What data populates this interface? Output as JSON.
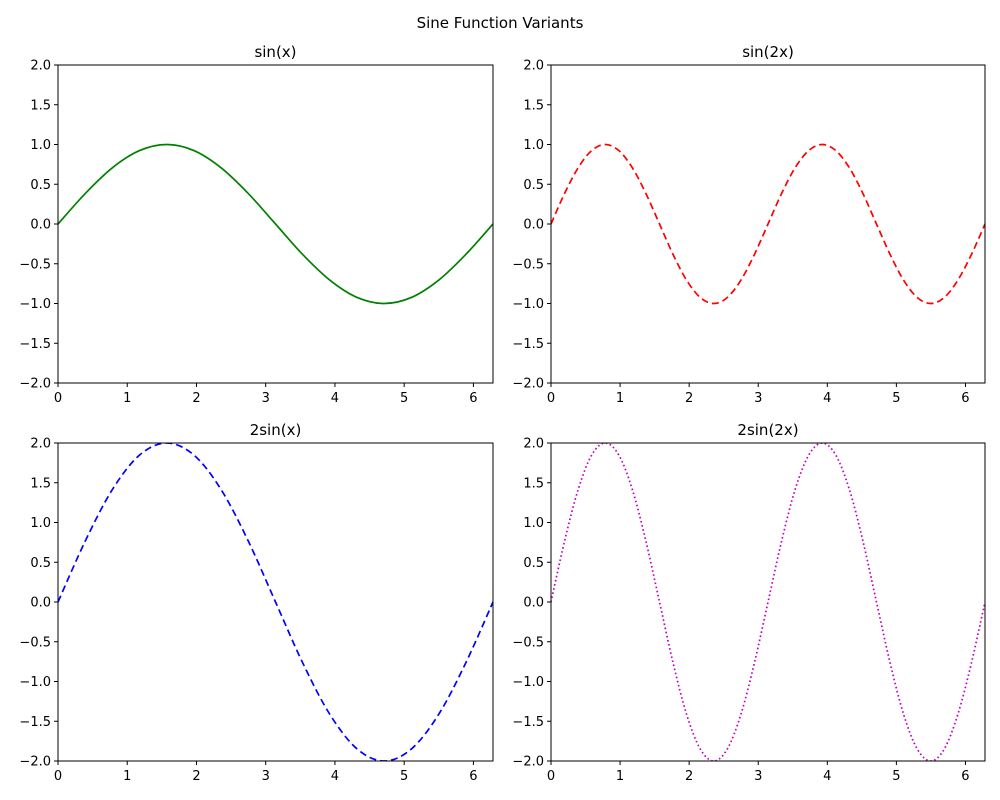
{
  "figure": {
    "title": "Sine Function Variants"
  },
  "chart_data": [
    {
      "type": "line",
      "title": "sin(x)",
      "xlabel": "",
      "ylabel": "",
      "xlim": [
        0,
        6.283
      ],
      "ylim": [
        -2.0,
        2.0
      ],
      "xticks": [
        0,
        1,
        2,
        3,
        4,
        5,
        6
      ],
      "xtick_labels": [
        "0",
        "1",
        "2",
        "3",
        "4",
        "5",
        "6"
      ],
      "yticks": [
        -2.0,
        -1.5,
        -1.0,
        -0.5,
        0.0,
        0.5,
        1.0,
        1.5,
        2.0
      ],
      "ytick_labels": [
        "−2.0",
        "−1.5",
        "−1.0",
        "−0.5",
        "0.0",
        "0.5",
        "1.0",
        "1.5",
        "2.0"
      ],
      "grid": false,
      "series": [
        {
          "color": "#008000",
          "linestyle": "solid",
          "x": [
            0,
            0.393,
            0.785,
            1.178,
            1.571,
            1.963,
            2.356,
            2.749,
            3.142,
            3.534,
            3.927,
            4.32,
            4.712,
            5.105,
            5.498,
            5.89,
            6.283
          ],
          "y": [
            0,
            0.383,
            0.707,
            0.924,
            1.0,
            0.924,
            0.707,
            0.383,
            0,
            -0.383,
            -0.707,
            -0.924,
            -1.0,
            -0.924,
            -0.707,
            -0.383,
            0
          ]
        }
      ]
    },
    {
      "type": "line",
      "title": "sin(2x)",
      "xlabel": "",
      "ylabel": "",
      "xlim": [
        0,
        6.283
      ],
      "ylim": [
        -2.0,
        2.0
      ],
      "xticks": [
        0,
        1,
        2,
        3,
        4,
        5,
        6
      ],
      "xtick_labels": [
        "0",
        "1",
        "2",
        "3",
        "4",
        "5",
        "6"
      ],
      "yticks": [
        -2.0,
        -1.5,
        -1.0,
        -0.5,
        0.0,
        0.5,
        1.0,
        1.5,
        2.0
      ],
      "ytick_labels": [
        "−2.0",
        "−1.5",
        "−1.0",
        "−0.5",
        "0.0",
        "0.5",
        "1.0",
        "1.5",
        "2.0"
      ],
      "grid": false,
      "series": [
        {
          "color": "#ff0000",
          "linestyle": "dashed",
          "x": [
            0,
            0.196,
            0.393,
            0.589,
            0.785,
            0.982,
            1.178,
            1.374,
            1.571,
            1.767,
            1.963,
            2.16,
            2.356,
            2.553,
            2.749,
            2.945,
            3.142,
            3.338,
            3.534,
            3.731,
            3.927,
            4.123,
            4.32,
            4.516,
            4.712,
            4.909,
            5.105,
            5.301,
            5.498,
            5.694,
            5.89,
            6.087,
            6.283
          ],
          "y": [
            0,
            0.383,
            0.707,
            0.924,
            1.0,
            0.924,
            0.707,
            0.383,
            0,
            -0.383,
            -0.707,
            -0.924,
            -1.0,
            -0.924,
            -0.707,
            -0.383,
            0,
            0.383,
            0.707,
            0.924,
            1.0,
            0.924,
            0.707,
            0.383,
            0,
            -0.383,
            -0.707,
            -0.924,
            -1.0,
            -0.924,
            -0.707,
            -0.383,
            0
          ]
        }
      ]
    },
    {
      "type": "line",
      "title": "2sin(x)",
      "xlabel": "",
      "ylabel": "",
      "xlim": [
        0,
        6.283
      ],
      "ylim": [
        -2.0,
        2.0
      ],
      "xticks": [
        0,
        1,
        2,
        3,
        4,
        5,
        6
      ],
      "xtick_labels": [
        "0",
        "1",
        "2",
        "3",
        "4",
        "5",
        "6"
      ],
      "yticks": [
        -2.0,
        -1.5,
        -1.0,
        -0.5,
        0.0,
        0.5,
        1.0,
        1.5,
        2.0
      ],
      "ytick_labels": [
        "−2.0",
        "−1.5",
        "−1.0",
        "−0.5",
        "0.0",
        "0.5",
        "1.0",
        "1.5",
        "2.0"
      ],
      "grid": false,
      "series": [
        {
          "color": "#0000ff",
          "linestyle": "dashed",
          "x": [
            0,
            0.393,
            0.785,
            1.178,
            1.571,
            1.963,
            2.356,
            2.749,
            3.142,
            3.534,
            3.927,
            4.32,
            4.712,
            5.105,
            5.498,
            5.89,
            6.283
          ],
          "y": [
            0,
            0.765,
            1.414,
            1.848,
            2.0,
            1.848,
            1.414,
            0.765,
            0,
            -0.765,
            -1.414,
            -1.848,
            -2.0,
            -1.848,
            -1.414,
            -0.765,
            0
          ]
        }
      ]
    },
    {
      "type": "line",
      "title": "2sin(2x)",
      "xlabel": "",
      "ylabel": "",
      "xlim": [
        0,
        6.283
      ],
      "ylim": [
        -2.0,
        2.0
      ],
      "xticks": [
        0,
        1,
        2,
        3,
        4,
        5,
        6
      ],
      "xtick_labels": [
        "0",
        "1",
        "2",
        "3",
        "4",
        "5",
        "6"
      ],
      "yticks": [
        -2.0,
        -1.5,
        -1.0,
        -0.5,
        0.0,
        0.5,
        1.0,
        1.5,
        2.0
      ],
      "ytick_labels": [
        "−2.0",
        "−1.5",
        "−1.0",
        "−0.5",
        "0.0",
        "0.5",
        "1.0",
        "1.5",
        "2.0"
      ],
      "grid": false,
      "series": [
        {
          "color": "#bf00bf",
          "linestyle": "dotted",
          "x": [
            0,
            0.196,
            0.393,
            0.589,
            0.785,
            0.982,
            1.178,
            1.374,
            1.571,
            1.767,
            1.963,
            2.16,
            2.356,
            2.553,
            2.749,
            2.945,
            3.142,
            3.338,
            3.534,
            3.731,
            3.927,
            4.123,
            4.32,
            4.516,
            4.712,
            4.909,
            5.105,
            5.301,
            5.498,
            5.694,
            5.89,
            6.087,
            6.283
          ],
          "y": [
            0,
            0.765,
            1.414,
            1.848,
            2.0,
            1.848,
            1.414,
            0.765,
            0,
            -0.765,
            -1.414,
            -1.848,
            -2.0,
            -1.848,
            -1.414,
            -0.765,
            0,
            0.765,
            1.414,
            1.848,
            2.0,
            1.848,
            1.414,
            0.765,
            0,
            -0.765,
            -1.414,
            -1.848,
            -2.0,
            -1.848,
            -1.414,
            -0.765,
            0
          ]
        }
      ]
    }
  ]
}
